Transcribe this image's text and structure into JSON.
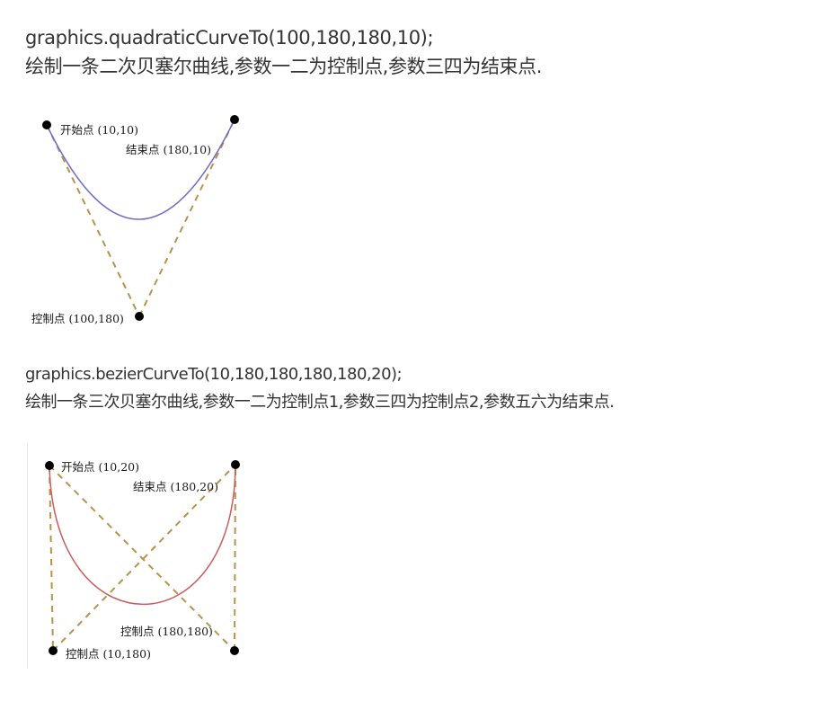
{
  "section1": {
    "code": "graphics.quadraticCurveTo(100,180,180,10);",
    "description": "绘制一条二次贝塞尔曲线,参数一二为控制点,参数三四为结束点.",
    "figure": {
      "start_label": "开始点 (10,10)",
      "end_label": "结束点 (180,10)",
      "control_label": "控制点 (100,180)",
      "curve_color": "#6e6ec8",
      "guide_color": "#b8924a",
      "point_color": "#000000"
    }
  },
  "section2": {
    "code": "graphics.bezierCurveTo(10,180,180,180,180,20);",
    "description": "绘制一条三次贝塞尔曲线,参数一二为控制点1,参数三四为控制点2,参数五六为结束点.",
    "figure": {
      "start_label": "开始点 (10,20)",
      "end_label": "结束点 (180,20)",
      "control2_label": "控制点 (180,180)",
      "control1_label": "控制点 (10,180)",
      "curve_color": "#cc5a5a",
      "guide_color": "#b8924a",
      "point_color": "#000000"
    }
  }
}
